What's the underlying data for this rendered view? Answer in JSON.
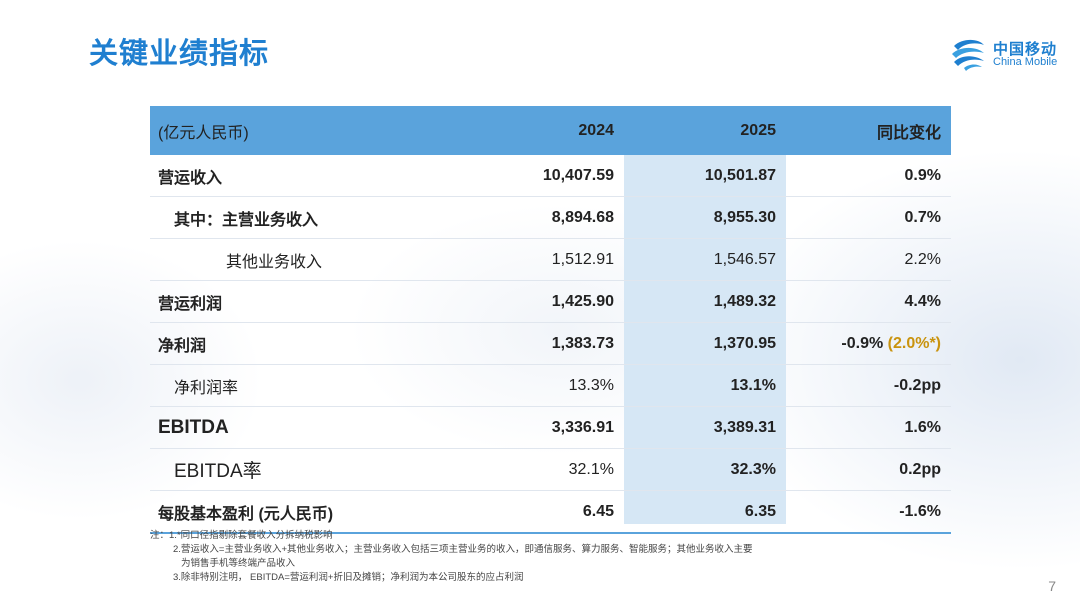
{
  "title": "关键业绩指标",
  "logo": {
    "cn": "中国移动",
    "en": "China Mobile"
  },
  "table": {
    "headers": [
      "(亿元人民币)",
      "2024",
      "2025",
      "同比变化"
    ],
    "rows": [
      {
        "label": "营运收入",
        "v2024": "10,407.59",
        "v2025": "10,501.87",
        "change": "0.9%"
      },
      {
        "label": "其中：主营业务收入",
        "v2024": "8,894.68",
        "v2025": "8,955.30",
        "change": "0.7%"
      },
      {
        "label": "其他业务收入",
        "v2024": "1,512.91",
        "v2025": "1,546.57",
        "change": "2.2%"
      },
      {
        "label": "营运利润",
        "v2024": "1,425.90",
        "v2025": "1,489.32",
        "change": "4.4%"
      },
      {
        "label": "净利润",
        "v2024": "1,383.73",
        "v2025": "1,370.95",
        "change": "-0.9%",
        "change_note": "(2.0%*)"
      },
      {
        "label": "净利润率",
        "v2024": "13.3%",
        "v2025": "13.1%",
        "change": "-0.2pp"
      },
      {
        "label": "EBITDA",
        "v2024": "3,336.91",
        "v2025": "3,389.31",
        "change": "1.6%"
      },
      {
        "label": "EBITDA率",
        "v2024": "32.1%",
        "v2025": "32.3%",
        "change": "0.2pp"
      },
      {
        "label": "每股基本盈利 (元人民币)",
        "v2024": "6.45",
        "v2025": "6.35",
        "change": "-1.6%"
      }
    ]
  },
  "notes": {
    "prefix": "注：",
    "n1": "1.*同口径指剔除套餐收入分拆纳税影响",
    "n2a": "2.营运收入=主营业务收入+其他业务收入；主营业务收入包括三项主营业务的收入，即通信服务、算力服务、智能服务；其他业务收入主要",
    "n2b": "为销售手机等终端产品收入",
    "n3": "3.除非特别注明， EBITDA=营运利润+折旧及摊销；净利润为本公司股东的应占利润"
  },
  "page_number": "7",
  "colors": {
    "title": "#1f7fd0",
    "header_bg": "#5aa3dc",
    "highlight_col": "#d6e7f5",
    "note_gold": "#c9930e"
  }
}
